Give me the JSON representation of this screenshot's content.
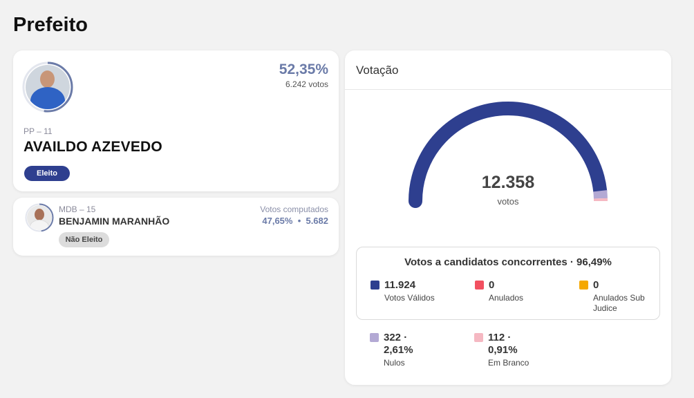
{
  "page_title": "Prefeito",
  "winner": {
    "percent": "52,35%",
    "votes": "6.242 votos",
    "party": "PP – 11",
    "name": "AVAILDO AZEVEDO",
    "status": "Eleito",
    "vote_share": 0.5235
  },
  "loser": {
    "party": "MDB – 15",
    "name": "BENJAMIN MARANHÃO",
    "computed_label": "Votos computados",
    "computed_values": "47,65%  •  5.682",
    "status": "Não Eleito",
    "vote_share": 0.4765
  },
  "votacao": {
    "title": "Votação",
    "total": "12.358",
    "total_label": "votos",
    "gauge_fractions": {
      "validos": 0.9649,
      "nulos": 0.0261,
      "branco": 0.0091
    },
    "concorrentes_title": "Votos a candidatos concorrentes · 96,49%",
    "stats": [
      {
        "num": "11.924",
        "label": "Votos Válidos",
        "color": "#2e3f8f"
      },
      {
        "num": "0",
        "label": "Anulados",
        "color": "#f25060"
      },
      {
        "num": "0",
        "label": "Anulados Sub Judice",
        "color": "#f5a800"
      }
    ],
    "extra": [
      {
        "num": "322 · 2,61%",
        "label": "Nulos",
        "color": "#b3a9d4"
      },
      {
        "num": "112 · 0,91%",
        "label": "Em Branco",
        "color": "#f5b8c2"
      }
    ]
  },
  "colors": {
    "accent": "#2e3f8f",
    "percent": "#6b7ba8"
  }
}
